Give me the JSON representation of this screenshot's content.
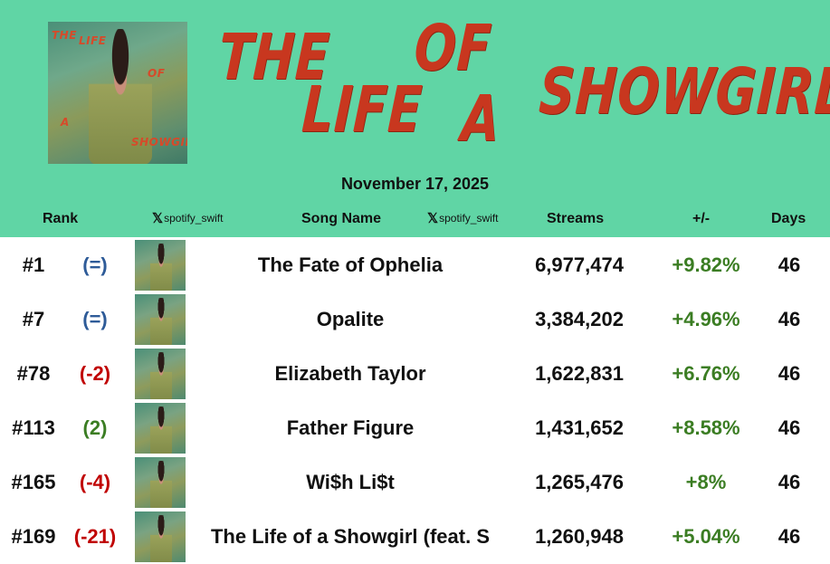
{
  "header": {
    "title_words": [
      "THE",
      "LIFE",
      "OF",
      "A",
      "SHOWGIRL"
    ],
    "date": "November 17, 2025",
    "album_art": {
      "words": [
        "THE",
        "LIFE",
        "OF",
        "A",
        "SHOWGIRL"
      ]
    }
  },
  "columns": {
    "rank": "Rank",
    "handle1": "spotify_swift",
    "song": "Song Name",
    "handle2": "spotify_swift",
    "streams": "Streams",
    "change": "+/-",
    "days": "Days"
  },
  "colors": {
    "header_bg": "#60d5a5",
    "title": "#c8371f",
    "same": "#2e5b98",
    "down": "#c00000",
    "up": "#3b7d23"
  },
  "rows": [
    {
      "rank": "#1",
      "move": "(=)",
      "move_type": "same",
      "song": "The Fate of Ophelia",
      "streams": "6,977,474",
      "change": "+9.82%",
      "days": "46"
    },
    {
      "rank": "#7",
      "move": "(=)",
      "move_type": "same",
      "song": "Opalite",
      "streams": "3,384,202",
      "change": "+4.96%",
      "days": "46"
    },
    {
      "rank": "#78",
      "move": "(-2)",
      "move_type": "down",
      "song": "Elizabeth Taylor",
      "streams": "1,622,831",
      "change": "+6.76%",
      "days": "46"
    },
    {
      "rank": "#113",
      "move": "(2)",
      "move_type": "up",
      "song": "Father Figure",
      "streams": "1,431,652",
      "change": "+8.58%",
      "days": "46"
    },
    {
      "rank": "#165",
      "move": "(-4)",
      "move_type": "down",
      "song": "Wi$h Li$t",
      "streams": "1,265,476",
      "change": "+8%",
      "days": "46"
    },
    {
      "rank": "#169",
      "move": "(-21)",
      "move_type": "down",
      "song": "The Life of a Showgirl (feat. S",
      "streams": "1,260,948",
      "change": "+5.04%",
      "days": "46"
    }
  ]
}
